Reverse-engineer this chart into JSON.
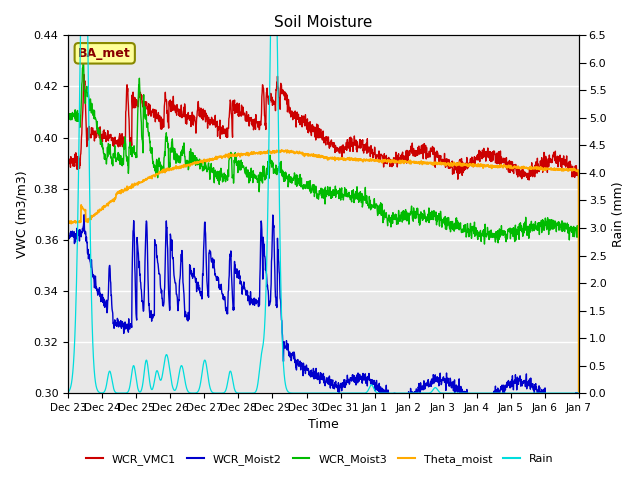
{
  "title": "Soil Moisture",
  "xlabel": "Time",
  "ylabel_left": "VWC (m3/m3)",
  "ylabel_right": "Rain (mm)",
  "ylim_left": [
    0.3,
    0.44
  ],
  "ylim_right": [
    0.0,
    6.5
  ],
  "yticks_left": [
    0.3,
    0.32,
    0.34,
    0.36,
    0.38,
    0.4,
    0.42,
    0.44
  ],
  "yticks_right": [
    0.0,
    0.5,
    1.0,
    1.5,
    2.0,
    2.5,
    3.0,
    3.5,
    4.0,
    4.5,
    5.0,
    5.5,
    6.0,
    6.5
  ],
  "xtick_labels": [
    "Dec 23",
    "Dec 24",
    "Dec 25",
    "Dec 26",
    "Dec 27",
    "Dec 28",
    "Dec 29",
    "Dec 30",
    "Dec 31",
    "Jan 1",
    "Jan 2",
    "Jan 3",
    "Jan 4",
    "Jan 5",
    "Jan 6",
    "Jan 7"
  ],
  "colors": {
    "WCR_VMC1": "#cc0000",
    "WCR_Moist2": "#0000cc",
    "WCR_Moist3": "#00bb00",
    "Theta_moist": "#ffaa00",
    "Rain": "#00dddd"
  },
  "bg_color": "#e8e8e8",
  "annotation_box": {
    "text": "BA_met",
    "bg": "#ffff99",
    "edge": "#888800"
  },
  "grid_color": "#ffffff",
  "grid_linewidth": 1.0,
  "title_fontsize": 11,
  "label_fontsize": 9,
  "tick_fontsize": 8,
  "legend_fontsize": 8
}
